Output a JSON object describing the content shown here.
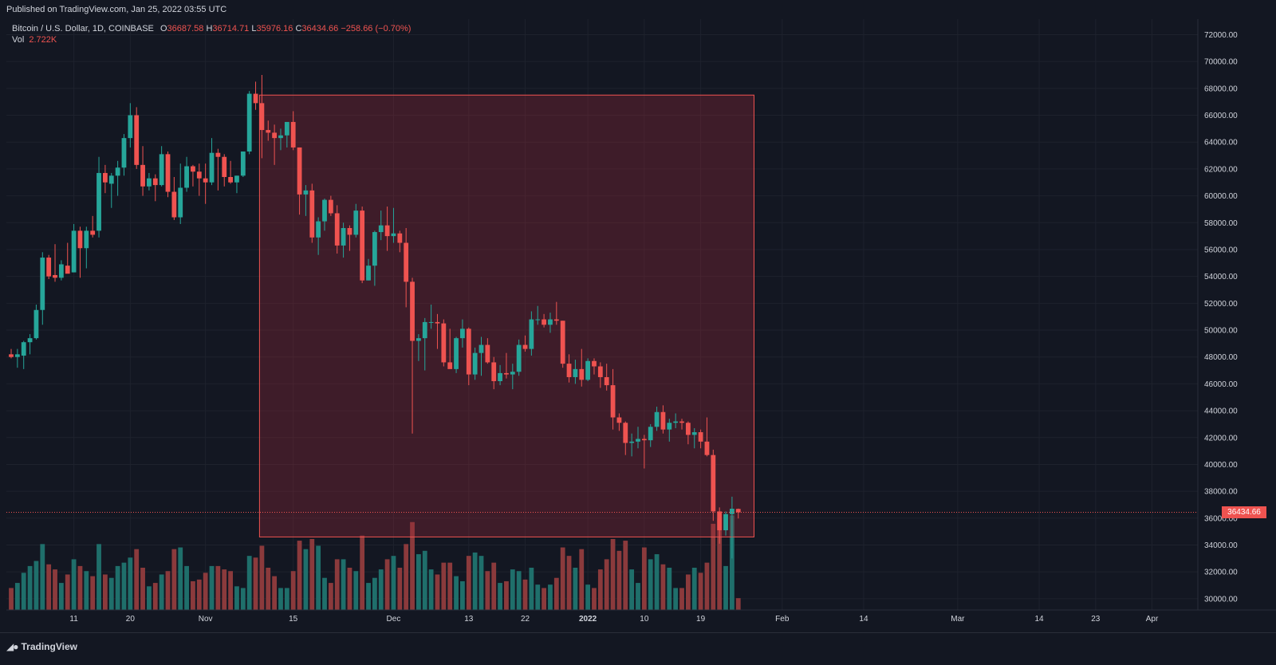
{
  "header": {
    "published": "Published on TradingView.com, Jan 25, 2022 03:55 UTC"
  },
  "legend": {
    "symbol": "Bitcoin / U.S. Dollar, 1D, COINBASE",
    "open_label": "O",
    "open": "36687.58",
    "high_label": "H",
    "high": "36714.71",
    "low_label": "L",
    "low": "35976.16",
    "close_label": "C",
    "close": "36434.66",
    "change": "−258.66 (−0.70%)",
    "vol_label": "Vol",
    "vol": "2.722K"
  },
  "footer": {
    "brand": "TradingView",
    "brand_icon": "tradingview-logo-icon"
  },
  "colors": {
    "background": "#131722",
    "up": "#26a69a",
    "down": "#ef5350",
    "up_vol": "#1f6f6b",
    "down_vol": "#8b3a3c",
    "grid": "#1e222d",
    "box_fill": "rgba(155,40,55,0.32)",
    "box_stroke": "#ef5350"
  },
  "chart_data": {
    "type": "candlestick",
    "title": "",
    "y_axis": {
      "side": "right",
      "range": [
        29500,
        73000
      ],
      "ticks": [
        "72000.00",
        "70000.00",
        "68000.00",
        "66000.00",
        "64000.00",
        "62000.00",
        "60000.00",
        "58000.00",
        "56000.00",
        "54000.00",
        "52000.00",
        "50000.00",
        "48000.00",
        "46000.00",
        "44000.00",
        "42000.00",
        "40000.00",
        "38000.00",
        "36000.00",
        "34000.00",
        "32000.00",
        "30000.00"
      ]
    },
    "x_axis": {
      "first_day": "2021-10-01",
      "last_day": "2022-04-10",
      "labels": [
        {
          "date": "2021-10-11",
          "label": "11",
          "bold": false
        },
        {
          "date": "2021-10-20",
          "label": "20",
          "bold": false
        },
        {
          "date": "2021-11-01",
          "label": "Nov",
          "bold": false
        },
        {
          "date": "2021-11-15",
          "label": "15",
          "bold": false
        },
        {
          "date": "2021-12-01",
          "label": "Dec",
          "bold": false
        },
        {
          "date": "2021-12-13",
          "label": "13",
          "bold": false
        },
        {
          "date": "2021-12-22",
          "label": "22",
          "bold": false
        },
        {
          "date": "2022-01-01",
          "label": "2022",
          "bold": true
        },
        {
          "date": "2022-01-10",
          "label": "10",
          "bold": false
        },
        {
          "date": "2022-01-19",
          "label": "19",
          "bold": false
        },
        {
          "date": "2022-02-01",
          "label": "Feb",
          "bold": false
        },
        {
          "date": "2022-02-14",
          "label": "14",
          "bold": false
        },
        {
          "date": "2022-03-01",
          "label": "Mar",
          "bold": false
        },
        {
          "date": "2022-03-14",
          "label": "14",
          "bold": false
        },
        {
          "date": "2022-03-23",
          "label": "23",
          "bold": false
        },
        {
          "date": "2022-04-01",
          "label": "Apr",
          "bold": false
        }
      ]
    },
    "last_price": "36434.66",
    "last_price_value": 36434.66,
    "shaded_box": {
      "start": "2021-11-10",
      "end": "2022-01-27",
      "top": 67500,
      "bottom": 34600
    },
    "volume_axis_max": 5,
    "columns": [
      "date",
      "open",
      "high",
      "low",
      "close",
      "volume"
    ],
    "candles": [
      [
        "2021-10-01",
        48200,
        48600,
        47900,
        48000,
        1.3
      ],
      [
        "2021-10-02",
        48000,
        48600,
        47200,
        48200,
        1.6
      ],
      [
        "2021-10-03",
        48100,
        49200,
        47100,
        49100,
        2.2
      ],
      [
        "2021-10-04",
        49100,
        49700,
        48200,
        49400,
        2.6
      ],
      [
        "2021-10-05",
        49400,
        51900,
        49300,
        51500,
        2.9
      ],
      [
        "2021-10-06",
        51500,
        55800,
        50400,
        55400,
        3.9
      ],
      [
        "2021-10-07",
        55400,
        55600,
        53800,
        54000,
        2.7
      ],
      [
        "2021-10-08",
        54100,
        56400,
        53600,
        53900,
        2.4
      ],
      [
        "2021-10-09",
        53900,
        55200,
        53700,
        54900,
        1.6
      ],
      [
        "2021-10-10",
        54800,
        56500,
        54300,
        54200,
        2.1
      ],
      [
        "2021-10-11",
        54300,
        57900,
        54300,
        57400,
        3.0
      ],
      [
        "2021-10-12",
        57400,
        57700,
        53900,
        56100,
        2.6
      ],
      [
        "2021-10-13",
        56100,
        57700,
        54600,
        57400,
        2.3
      ],
      [
        "2021-10-14",
        57400,
        58500,
        56900,
        57100,
        2.0
      ],
      [
        "2021-10-15",
        57400,
        62900,
        56900,
        61700,
        3.9
      ],
      [
        "2021-10-16",
        61700,
        62300,
        60200,
        61000,
        2.1
      ],
      [
        "2021-10-17",
        60900,
        61700,
        59100,
        61500,
        1.9
      ],
      [
        "2021-10-18",
        61500,
        62600,
        60000,
        62100,
        2.6
      ],
      [
        "2021-10-19",
        62100,
        64600,
        61500,
        64300,
        2.8
      ],
      [
        "2021-10-20",
        64300,
        66900,
        63600,
        66000,
        3.1
      ],
      [
        "2021-10-21",
        66000,
        66600,
        62000,
        62300,
        3.6
      ],
      [
        "2021-10-22",
        62300,
        63700,
        60000,
        60700,
        2.5
      ],
      [
        "2021-10-23",
        60700,
        61700,
        60400,
        61300,
        1.4
      ],
      [
        "2021-10-24",
        61300,
        61600,
        59600,
        60800,
        1.6
      ],
      [
        "2021-10-25",
        60800,
        63700,
        60700,
        63100,
        2.1
      ],
      [
        "2021-10-26",
        63100,
        63300,
        59900,
        60300,
        2.3
      ],
      [
        "2021-10-27",
        60300,
        61400,
        58200,
        58400,
        3.6
      ],
      [
        "2021-10-28",
        58400,
        62400,
        57900,
        60600,
        3.7
      ],
      [
        "2021-10-29",
        60600,
        62900,
        60300,
        62200,
        2.6
      ],
      [
        "2021-10-30",
        62200,
        62300,
        60700,
        61800,
        1.7
      ],
      [
        "2021-10-31",
        61800,
        62400,
        60000,
        61300,
        1.8
      ],
      [
        "2021-11-01",
        61300,
        62400,
        59400,
        61000,
        2.2
      ],
      [
        "2021-11-02",
        61000,
        64300,
        60800,
        63200,
        2.6
      ],
      [
        "2021-11-03",
        63200,
        63500,
        60400,
        62900,
        2.6
      ],
      [
        "2021-11-04",
        62900,
        63100,
        60700,
        61400,
        2.4
      ],
      [
        "2021-11-05",
        61400,
        62600,
        60900,
        61000,
        2.3
      ],
      [
        "2021-11-06",
        61000,
        61500,
        60200,
        61500,
        1.4
      ],
      [
        "2021-11-07",
        61500,
        63300,
        61400,
        63300,
        1.3
      ],
      [
        "2021-11-08",
        63300,
        67800,
        63100,
        67600,
        3.2
      ],
      [
        "2021-11-09",
        67600,
        68500,
        66400,
        66900,
        3.1
      ],
      [
        "2021-11-10",
        66900,
        69000,
        62800,
        64900,
        3.8
      ],
      [
        "2021-11-11",
        64900,
        65600,
        64100,
        64700,
        2.5
      ],
      [
        "2021-11-12",
        64700,
        65300,
        62300,
        64300,
        2.0
      ],
      [
        "2021-11-13",
        64300,
        65000,
        63400,
        64500,
        1.3
      ],
      [
        "2021-11-14",
        64500,
        65300,
        63600,
        65500,
        1.3
      ],
      [
        "2021-11-15",
        65500,
        66300,
        63400,
        63600,
        2.3
      ],
      [
        "2021-11-16",
        63600,
        63600,
        58600,
        60100,
        4.1
      ],
      [
        "2021-11-17",
        60100,
        60800,
        58500,
        60400,
        3.6
      ],
      [
        "2021-11-18",
        60400,
        60900,
        56500,
        56900,
        4.2
      ],
      [
        "2021-11-19",
        56900,
        58400,
        55600,
        58100,
        3.8
      ],
      [
        "2021-11-20",
        58100,
        59800,
        57400,
        59700,
        1.9
      ],
      [
        "2021-11-21",
        59700,
        60000,
        58500,
        58700,
        1.6
      ],
      [
        "2021-11-22",
        58700,
        59300,
        55700,
        56300,
        3.0
      ],
      [
        "2021-11-23",
        56300,
        58000,
        55400,
        57600,
        3.0
      ],
      [
        "2021-11-24",
        57600,
        57800,
        55900,
        57100,
        2.5
      ],
      [
        "2021-11-25",
        57100,
        59400,
        56900,
        58900,
        2.3
      ],
      [
        "2021-11-26",
        58900,
        59200,
        53500,
        53700,
        4.4
      ],
      [
        "2021-11-27",
        53700,
        55300,
        53700,
        54800,
        1.6
      ],
      [
        "2021-11-28",
        54800,
        57400,
        53300,
        57300,
        1.9
      ],
      [
        "2021-11-29",
        57300,
        58900,
        56700,
        57800,
        2.4
      ],
      [
        "2021-11-30",
        57800,
        59200,
        55900,
        57000,
        3.0
      ],
      [
        "2021-12-01",
        57000,
        59100,
        56500,
        57200,
        3.2
      ],
      [
        "2021-12-02",
        57200,
        57400,
        55800,
        56500,
        2.5
      ],
      [
        "2021-12-03",
        56500,
        57600,
        51700,
        53600,
        3.9
      ],
      [
        "2021-12-04",
        53600,
        53900,
        42300,
        49200,
        5.2
      ],
      [
        "2021-12-05",
        49200,
        49700,
        47700,
        49400,
        3.3
      ],
      [
        "2021-12-06",
        49400,
        50900,
        47000,
        50600,
        3.5
      ],
      [
        "2021-12-07",
        50600,
        51900,
        50100,
        50600,
        2.4
      ],
      [
        "2021-12-08",
        50600,
        51200,
        48600,
        50500,
        2.1
      ],
      [
        "2021-12-09",
        50500,
        50800,
        47300,
        47600,
        2.8
      ],
      [
        "2021-12-10",
        47600,
        50100,
        47200,
        47100,
        2.8
      ],
      [
        "2021-12-11",
        47100,
        49500,
        46800,
        49400,
        2.0
      ],
      [
        "2021-12-12",
        49400,
        50800,
        48700,
        50100,
        1.7
      ],
      [
        "2021-12-13",
        50100,
        50200,
        45900,
        46700,
        3.2
      ],
      [
        "2021-12-14",
        46700,
        48700,
        46300,
        48300,
        3.4
      ],
      [
        "2021-12-15",
        48300,
        49500,
        46600,
        48900,
        3.2
      ],
      [
        "2021-12-16",
        48900,
        49400,
        47500,
        47600,
        2.3
      ],
      [
        "2021-12-17",
        47600,
        48000,
        45600,
        46200,
        2.8
      ],
      [
        "2021-12-18",
        46200,
        47400,
        45900,
        46800,
        1.6
      ],
      [
        "2021-12-19",
        46800,
        48300,
        46400,
        46700,
        1.7
      ],
      [
        "2021-12-20",
        46700,
        47500,
        45600,
        46900,
        2.4
      ],
      [
        "2021-12-21",
        46900,
        49300,
        46600,
        48900,
        2.3
      ],
      [
        "2021-12-22",
        48900,
        49600,
        48400,
        48600,
        1.8
      ],
      [
        "2021-12-23",
        48600,
        51400,
        48100,
        50800,
        2.5
      ],
      [
        "2021-12-24",
        50800,
        51800,
        50400,
        50800,
        1.5
      ],
      [
        "2021-12-25",
        50800,
        51200,
        50200,
        50400,
        1.3
      ],
      [
        "2021-12-26",
        50400,
        51300,
        49800,
        50800,
        1.5
      ],
      [
        "2021-12-27",
        50800,
        52100,
        50400,
        50700,
        1.9
      ],
      [
        "2021-12-28",
        50700,
        50700,
        47200,
        47500,
        3.7
      ],
      [
        "2021-12-29",
        47500,
        48200,
        46100,
        46500,
        3.2
      ],
      [
        "2021-12-30",
        46500,
        47800,
        46000,
        47100,
        2.5
      ],
      [
        "2021-12-31",
        47100,
        48600,
        45800,
        46300,
        3.6
      ],
      [
        "2022-01-01",
        46300,
        47900,
        46200,
        47700,
        1.5
      ],
      [
        "2022-01-02",
        47700,
        47900,
        46700,
        47300,
        1.3
      ],
      [
        "2022-01-03",
        47300,
        47600,
        45700,
        46500,
        2.4
      ],
      [
        "2022-01-04",
        46500,
        47500,
        45500,
        45900,
        3.0
      ],
      [
        "2022-01-05",
        45900,
        47100,
        42600,
        43500,
        4.2
      ],
      [
        "2022-01-06",
        43500,
        43800,
        42500,
        43100,
        3.5
      ],
      [
        "2022-01-07",
        43100,
        43200,
        40700,
        41600,
        4.1
      ],
      [
        "2022-01-08",
        41600,
        42300,
        40600,
        41700,
        2.4
      ],
      [
        "2022-01-09",
        41700,
        42800,
        41200,
        41900,
        1.6
      ],
      [
        "2022-01-10",
        41900,
        42200,
        39700,
        41800,
        3.7
      ],
      [
        "2022-01-11",
        41800,
        43000,
        41300,
        42800,
        3.0
      ],
      [
        "2022-01-12",
        42800,
        44300,
        42500,
        43900,
        3.3
      ],
      [
        "2022-01-13",
        43900,
        44400,
        42300,
        42600,
        2.7
      ],
      [
        "2022-01-14",
        42600,
        43400,
        41700,
        43100,
        2.5
      ],
      [
        "2022-01-15",
        43100,
        43800,
        42700,
        43200,
        1.3
      ],
      [
        "2022-01-16",
        43200,
        43400,
        42600,
        43100,
        1.3
      ],
      [
        "2022-01-17",
        43100,
        43200,
        41500,
        42200,
        2.1
      ],
      [
        "2022-01-18",
        42200,
        42700,
        41200,
        42400,
        2.5
      ],
      [
        "2022-01-19",
        42400,
        42600,
        41200,
        41700,
        2.2
      ],
      [
        "2022-01-20",
        41700,
        43500,
        40600,
        40700,
        2.8
      ],
      [
        "2022-01-21",
        40700,
        41100,
        35800,
        36500,
        5.1
      ],
      [
        "2022-01-22",
        36500,
        36800,
        34100,
        35100,
        5.4
      ],
      [
        "2022-01-23",
        35100,
        36500,
        34700,
        36300,
        2.6
      ],
      [
        "2022-01-24",
        36300,
        37600,
        33000,
        36700,
        5.6
      ],
      [
        "2022-01-25",
        36687.58,
        36714.71,
        35976.16,
        36434.66,
        0.7
      ]
    ]
  }
}
